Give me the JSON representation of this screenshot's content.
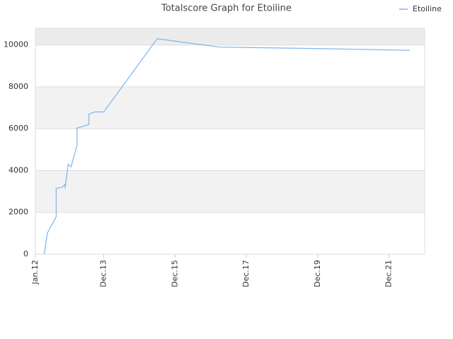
{
  "chart_data": {
    "type": "line",
    "title": "Totalscore Graph for Etoiline",
    "x": [
      "2012-04",
      "2012-05",
      "2012-08",
      "2012-08",
      "2012-08",
      "2012-10",
      "2012-11",
      "2012-11",
      "2012-12",
      "2013-01",
      "2013-03",
      "2013-03",
      "2013-07",
      "2013-07",
      "2013-09",
      "2013-12",
      "2015-06",
      "2017-03",
      "2019-12",
      "2022-01",
      "2022-07"
    ],
    "series": [
      {
        "name": "Etoiline",
        "color": "#7cb5ec",
        "values": [
          0,
          1000,
          1800,
          2800,
          3150,
          3200,
          3350,
          3150,
          4300,
          4180,
          5200,
          6030,
          6200,
          6700,
          6800,
          6800,
          10300,
          9900,
          9830,
          9760,
          9750
        ]
      }
    ],
    "xlim": [
      "2012-01",
      "2022-12"
    ],
    "xticks": [
      {
        "value": "2012-01",
        "label": "Jan.12"
      },
      {
        "value": "2013-12",
        "label": "Dec.13"
      },
      {
        "value": "2015-12",
        "label": "Dec.15"
      },
      {
        "value": "2017-12",
        "label": "Dec.17"
      },
      {
        "value": "2019-12",
        "label": "Dec.19"
      },
      {
        "value": "2021-12",
        "label": "Dec.21"
      }
    ],
    "ylim": [
      0,
      10800
    ],
    "yticks": [
      0,
      2000,
      4000,
      6000,
      8000,
      10000
    ],
    "grid": true,
    "legend": "top-right"
  }
}
